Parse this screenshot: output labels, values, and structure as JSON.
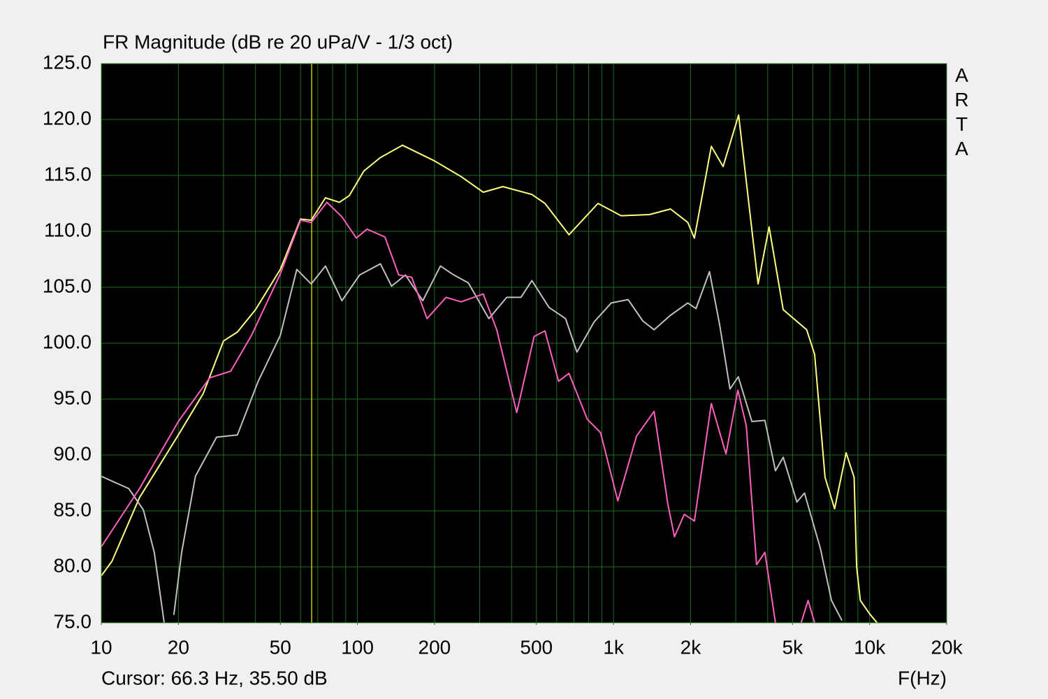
{
  "chart_data": {
    "type": "line",
    "title": "FR Magnitude (dB re 20 uPa/V - 1/3 oct)",
    "xlabel": "F(Hz)",
    "watermark": "ARTA",
    "log_x": true,
    "grid": true,
    "xlim": [
      10,
      20000
    ],
    "ylim": [
      75,
      125
    ],
    "xticks": [
      10,
      20,
      50,
      100,
      200,
      500,
      {
        "value": 1000,
        "label": "1k"
      },
      {
        "value": 2000,
        "label": "2k"
      },
      {
        "value": 5000,
        "label": "5k"
      },
      {
        "value": 10000,
        "label": "10k"
      },
      {
        "value": 20000,
        "label": "20k"
      }
    ],
    "xgrid": [
      10,
      20,
      30,
      40,
      50,
      60,
      70,
      80,
      90,
      100,
      200,
      300,
      400,
      500,
      600,
      700,
      800,
      900,
      1000,
      2000,
      3000,
      4000,
      5000,
      6000,
      7000,
      8000,
      9000,
      10000,
      20000
    ],
    "yticks": [
      {
        "value": 75,
        "label": "75.0"
      },
      {
        "value": 80,
        "label": "80.0"
      },
      {
        "value": 85,
        "label": "85.0"
      },
      {
        "value": 90,
        "label": "90.0"
      },
      {
        "value": 95,
        "label": "95.0"
      },
      {
        "value": 100,
        "label": "100.0"
      },
      {
        "value": 105,
        "label": "105.0"
      },
      {
        "value": 110,
        "label": "110.0"
      },
      {
        "value": 115,
        "label": "115.0"
      },
      {
        "value": 120,
        "label": "120.0"
      },
      {
        "value": 125,
        "label": "125.0"
      }
    ],
    "cursor": {
      "x": 66.3,
      "label": "Cursor: 66.3 Hz, 35.50 dB",
      "color": "#c8c800"
    },
    "series": [
      {
        "color": "#ffff80",
        "x": [
          10,
          11,
          14.1,
          20,
          25,
          30,
          34,
          40,
          50,
          60,
          66,
          75,
          85,
          93,
          106,
          123,
          150,
          200,
          254,
          310,
          370,
          480,
          540,
          670,
          870,
          1070,
          1380,
          1670,
          1950,
          2070,
          2410,
          2680,
          3080,
          3670,
          4050,
          4600,
          5680,
          6100,
          6700,
          7300,
          8100,
          8700,
          8900,
          9200,
          10000,
          10700
        ],
        "values": [
          79.2,
          80.5,
          86.2,
          91.8,
          95.5,
          100.2,
          101,
          103,
          106.6,
          111.1,
          111,
          113,
          112.6,
          113.2,
          115.4,
          116.6,
          117.7,
          116.3,
          114.9,
          113.5,
          114,
          113.3,
          112.5,
          109.7,
          112.5,
          111.4,
          111.5,
          112,
          110.8,
          109.4,
          117.6,
          115.8,
          120.4,
          105.3,
          110.4,
          103,
          101.2,
          99,
          88,
          85.2,
          90.2,
          88,
          80,
          77,
          75.8,
          75
        ]
      },
      {
        "color": "#c0c0c0",
        "x": [
          10,
          12.8,
          14.6,
          16.1,
          17.6,
          null,
          19.2,
          20.6,
          23.3,
          28.2,
          34,
          41,
          50,
          58,
          66,
          75,
          87,
          102,
          123,
          136,
          154,
          180,
          211,
          238,
          271,
          326,
          383,
          435,
          480,
          560,
          650,
          720,
          840,
          980,
          1140,
          1300,
          1440,
          1670,
          1950,
          2100,
          2370,
          2600,
          2850,
          3070,
          3470,
          3900,
          4290,
          4600,
          5200,
          5570,
          6430,
          7100,
          7800
        ],
        "values": [
          88.1,
          87,
          85.1,
          81.3,
          75,
          null,
          75.7,
          81.3,
          88.1,
          91.6,
          91.8,
          96.6,
          100.7,
          106.6,
          105.3,
          106.9,
          103.8,
          106.1,
          107.1,
          105.1,
          106.1,
          103.8,
          106.9,
          106.1,
          105.4,
          102.2,
          104.1,
          104.1,
          105.6,
          103.2,
          102.2,
          99.2,
          101.9,
          103.6,
          103.9,
          102,
          101.2,
          102.5,
          103.6,
          103.1,
          106.4,
          101.6,
          95.9,
          97,
          93,
          93.1,
          88.6,
          89.8,
          85.8,
          86.6,
          81.6,
          77,
          75.2
        ]
      },
      {
        "color": "#ff60c0",
        "x": [
          10,
          14.1,
          20,
          26.5,
          32,
          38.6,
          50,
          60,
          66,
          76,
          87,
          99,
          109,
          128,
          145,
          163,
          187,
          222,
          254,
          310,
          350,
          419,
          490,
          540,
          610,
          670,
          790,
          890,
          1040,
          1230,
          1440,
          1630,
          1730,
          1890,
          2070,
          2410,
          2750,
          3060,
          3300,
          3620,
          3900,
          4290,
          null,
          5400,
          5750,
          6100
        ],
        "values": [
          81.8,
          87,
          93,
          96.9,
          97.5,
          100.7,
          106.2,
          111,
          110.8,
          112.6,
          111.3,
          109.4,
          110.2,
          109.5,
          106.1,
          105.9,
          102.2,
          104.1,
          103.7,
          104.4,
          101.2,
          93.8,
          100.6,
          101.1,
          96.6,
          97.3,
          93.2,
          92,
          85.9,
          91.7,
          93.9,
          85.6,
          82.7,
          84.7,
          84.1,
          94.6,
          90.1,
          95.8,
          92.6,
          80.2,
          81.3,
          75,
          null,
          75,
          77,
          75
        ]
      }
    ]
  }
}
